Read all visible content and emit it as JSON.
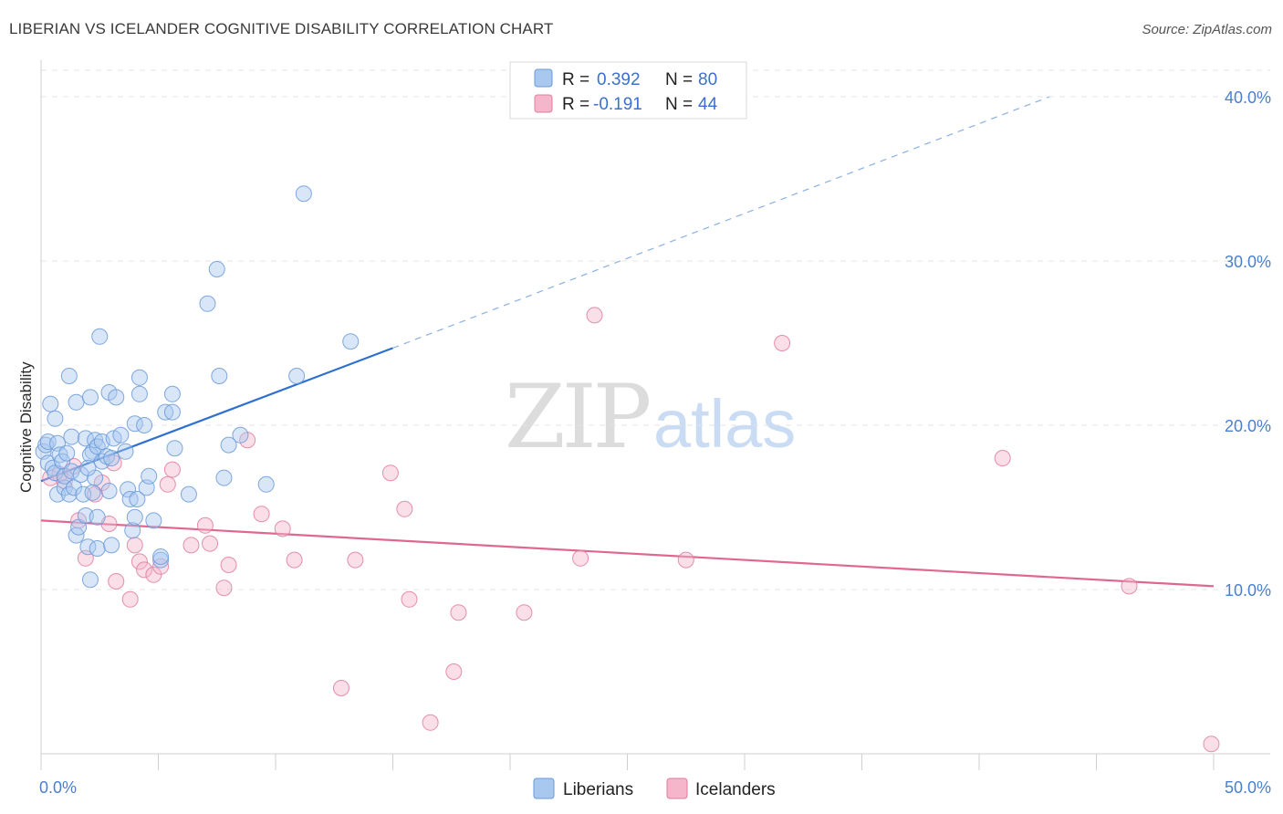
{
  "header": {
    "title": "LIBERIAN VS ICELANDER COGNITIVE DISABILITY CORRELATION CHART",
    "source": "Source: ZipAtlas.com"
  },
  "watermark": {
    "zip": "ZIP",
    "atlas": "atlas"
  },
  "legend_top": {
    "rows": [
      {
        "r_label": "R =",
        "r_value": "0.392",
        "n_label": "N =",
        "n_value": "80",
        "color": "#a8c8f0"
      },
      {
        "r_label": "R =",
        "r_value": "-0.191",
        "n_label": "N =",
        "n_value": "44",
        "color": "#f5b6cb"
      }
    ]
  },
  "legend_bottom": {
    "items": [
      "Liberians",
      "Icelanders"
    ]
  },
  "colors": {
    "liberian_fill": "#a8c8f0",
    "liberian_stroke": "#6a9ad8",
    "liberian_line": "#2e6fd0",
    "icelander_fill": "#f5b6cb",
    "icelander_stroke": "#e07d9d",
    "icelander_line": "#e0678f",
    "grid": "#e4e4e4",
    "tick_text": "#4a7fd0"
  },
  "chart_data": {
    "type": "scatter",
    "title": "LIBERIAN VS ICELANDER COGNITIVE DISABILITY CORRELATION CHART",
    "xlabel": "",
    "ylabel": "Cognitive Disability",
    "xlim": [
      0,
      50
    ],
    "ylim": [
      0,
      42
    ],
    "x_tick_labels": [
      "0.0%",
      "50.0%"
    ],
    "y_ticks": [
      10,
      20,
      30,
      40
    ],
    "y_tick_labels": [
      "10.0%",
      "20.0%",
      "30.0%",
      "40.0%"
    ],
    "grid": true,
    "legend_position": "top-center",
    "series": [
      {
        "name": "Liberians",
        "R": 0.392,
        "N": 80,
        "trend": {
          "x0": 0,
          "y0": 16.6,
          "x1": 15,
          "y1": 24.7,
          "dash_to_x": 43,
          "dash_to_y": 40.0
        },
        "points": [
          [
            0.1,
            18.4
          ],
          [
            0.2,
            18.8
          ],
          [
            0.3,
            19.0
          ],
          [
            0.3,
            17.7
          ],
          [
            0.4,
            21.3
          ],
          [
            0.5,
            17.4
          ],
          [
            0.6,
            17.1
          ],
          [
            0.6,
            20.4
          ],
          [
            0.7,
            18.9
          ],
          [
            0.7,
            15.8
          ],
          [
            0.8,
            18.2
          ],
          [
            0.9,
            17.8
          ],
          [
            1.0,
            16.2
          ],
          [
            1.0,
            16.9
          ],
          [
            1.1,
            18.3
          ],
          [
            1.2,
            15.8
          ],
          [
            1.2,
            23.0
          ],
          [
            1.3,
            19.3
          ],
          [
            1.3,
            17.2
          ],
          [
            1.4,
            16.2
          ],
          [
            1.5,
            21.4
          ],
          [
            1.5,
            13.3
          ],
          [
            1.6,
            13.8
          ],
          [
            1.7,
            17.0
          ],
          [
            1.8,
            15.8
          ],
          [
            1.9,
            19.2
          ],
          [
            1.9,
            14.5
          ],
          [
            2.0,
            12.6
          ],
          [
            2.1,
            21.7
          ],
          [
            2.1,
            10.6
          ],
          [
            2.2,
            18.4
          ],
          [
            2.3,
            16.8
          ],
          [
            2.4,
            14.4
          ],
          [
            2.4,
            12.5
          ],
          [
            2.1,
            18.2
          ],
          [
            2.0,
            17.4
          ],
          [
            2.2,
            15.9
          ],
          [
            2.3,
            19.1
          ],
          [
            2.4,
            18.7
          ],
          [
            2.5,
            25.4
          ],
          [
            2.6,
            19.0
          ],
          [
            2.6,
            17.8
          ],
          [
            2.8,
            18.1
          ],
          [
            2.9,
            16.0
          ],
          [
            2.9,
            22.0
          ],
          [
            3.0,
            18.0
          ],
          [
            3.0,
            12.7
          ],
          [
            3.1,
            19.2
          ],
          [
            3.2,
            21.7
          ],
          [
            3.4,
            19.4
          ],
          [
            3.6,
            18.4
          ],
          [
            3.7,
            16.1
          ],
          [
            3.8,
            15.5
          ],
          [
            3.9,
            13.6
          ],
          [
            4.0,
            14.4
          ],
          [
            4.0,
            20.1
          ],
          [
            4.1,
            15.5
          ],
          [
            4.2,
            22.9
          ],
          [
            4.2,
            21.9
          ],
          [
            4.4,
            20.0
          ],
          [
            4.5,
            16.2
          ],
          [
            4.6,
            16.9
          ],
          [
            4.8,
            14.2
          ],
          [
            5.1,
            11.8
          ],
          [
            5.1,
            12.0
          ],
          [
            5.3,
            20.8
          ],
          [
            5.6,
            20.8
          ],
          [
            5.6,
            21.9
          ],
          [
            5.7,
            18.6
          ],
          [
            6.3,
            15.8
          ],
          [
            7.1,
            27.4
          ],
          [
            7.5,
            29.5
          ],
          [
            7.6,
            23.0
          ],
          [
            7.8,
            16.8
          ],
          [
            8.0,
            18.8
          ],
          [
            8.5,
            19.4
          ],
          [
            9.6,
            16.4
          ],
          [
            10.9,
            23.0
          ],
          [
            11.2,
            34.1
          ],
          [
            13.2,
            25.1
          ]
        ]
      },
      {
        "name": "Icelanders",
        "R": -0.191,
        "N": 44,
        "trend": {
          "x0": 0,
          "y0": 14.2,
          "x1": 50,
          "y1": 10.2
        },
        "points": [
          [
            0.4,
            16.8
          ],
          [
            0.8,
            17.0
          ],
          [
            1.0,
            16.6
          ],
          [
            1.4,
            17.5
          ],
          [
            1.6,
            14.2
          ],
          [
            1.9,
            11.9
          ],
          [
            2.3,
            15.8
          ],
          [
            2.6,
            16.5
          ],
          [
            2.9,
            14.0
          ],
          [
            3.1,
            17.7
          ],
          [
            3.2,
            10.5
          ],
          [
            3.8,
            9.4
          ],
          [
            4.0,
            12.7
          ],
          [
            4.2,
            11.7
          ],
          [
            4.4,
            11.2
          ],
          [
            4.8,
            10.9
          ],
          [
            5.1,
            11.4
          ],
          [
            5.4,
            16.4
          ],
          [
            5.6,
            17.3
          ],
          [
            6.4,
            12.7
          ],
          [
            7.0,
            13.9
          ],
          [
            7.2,
            12.8
          ],
          [
            7.8,
            10.1
          ],
          [
            8.0,
            11.5
          ],
          [
            8.8,
            19.1
          ],
          [
            9.4,
            14.6
          ],
          [
            10.3,
            13.7
          ],
          [
            10.8,
            11.8
          ],
          [
            13.4,
            11.8
          ],
          [
            14.9,
            17.1
          ],
          [
            15.5,
            14.9
          ],
          [
            15.7,
            9.4
          ],
          [
            16.6,
            1.9
          ],
          [
            17.6,
            5.0
          ],
          [
            17.8,
            8.6
          ],
          [
            20.6,
            8.6
          ],
          [
            23.0,
            11.9
          ],
          [
            23.6,
            26.7
          ],
          [
            27.5,
            11.8
          ],
          [
            31.6,
            25.0
          ],
          [
            41.0,
            18.0
          ],
          [
            46.4,
            10.2
          ],
          [
            49.9,
            0.6
          ],
          [
            12.8,
            4.0
          ]
        ]
      }
    ]
  }
}
